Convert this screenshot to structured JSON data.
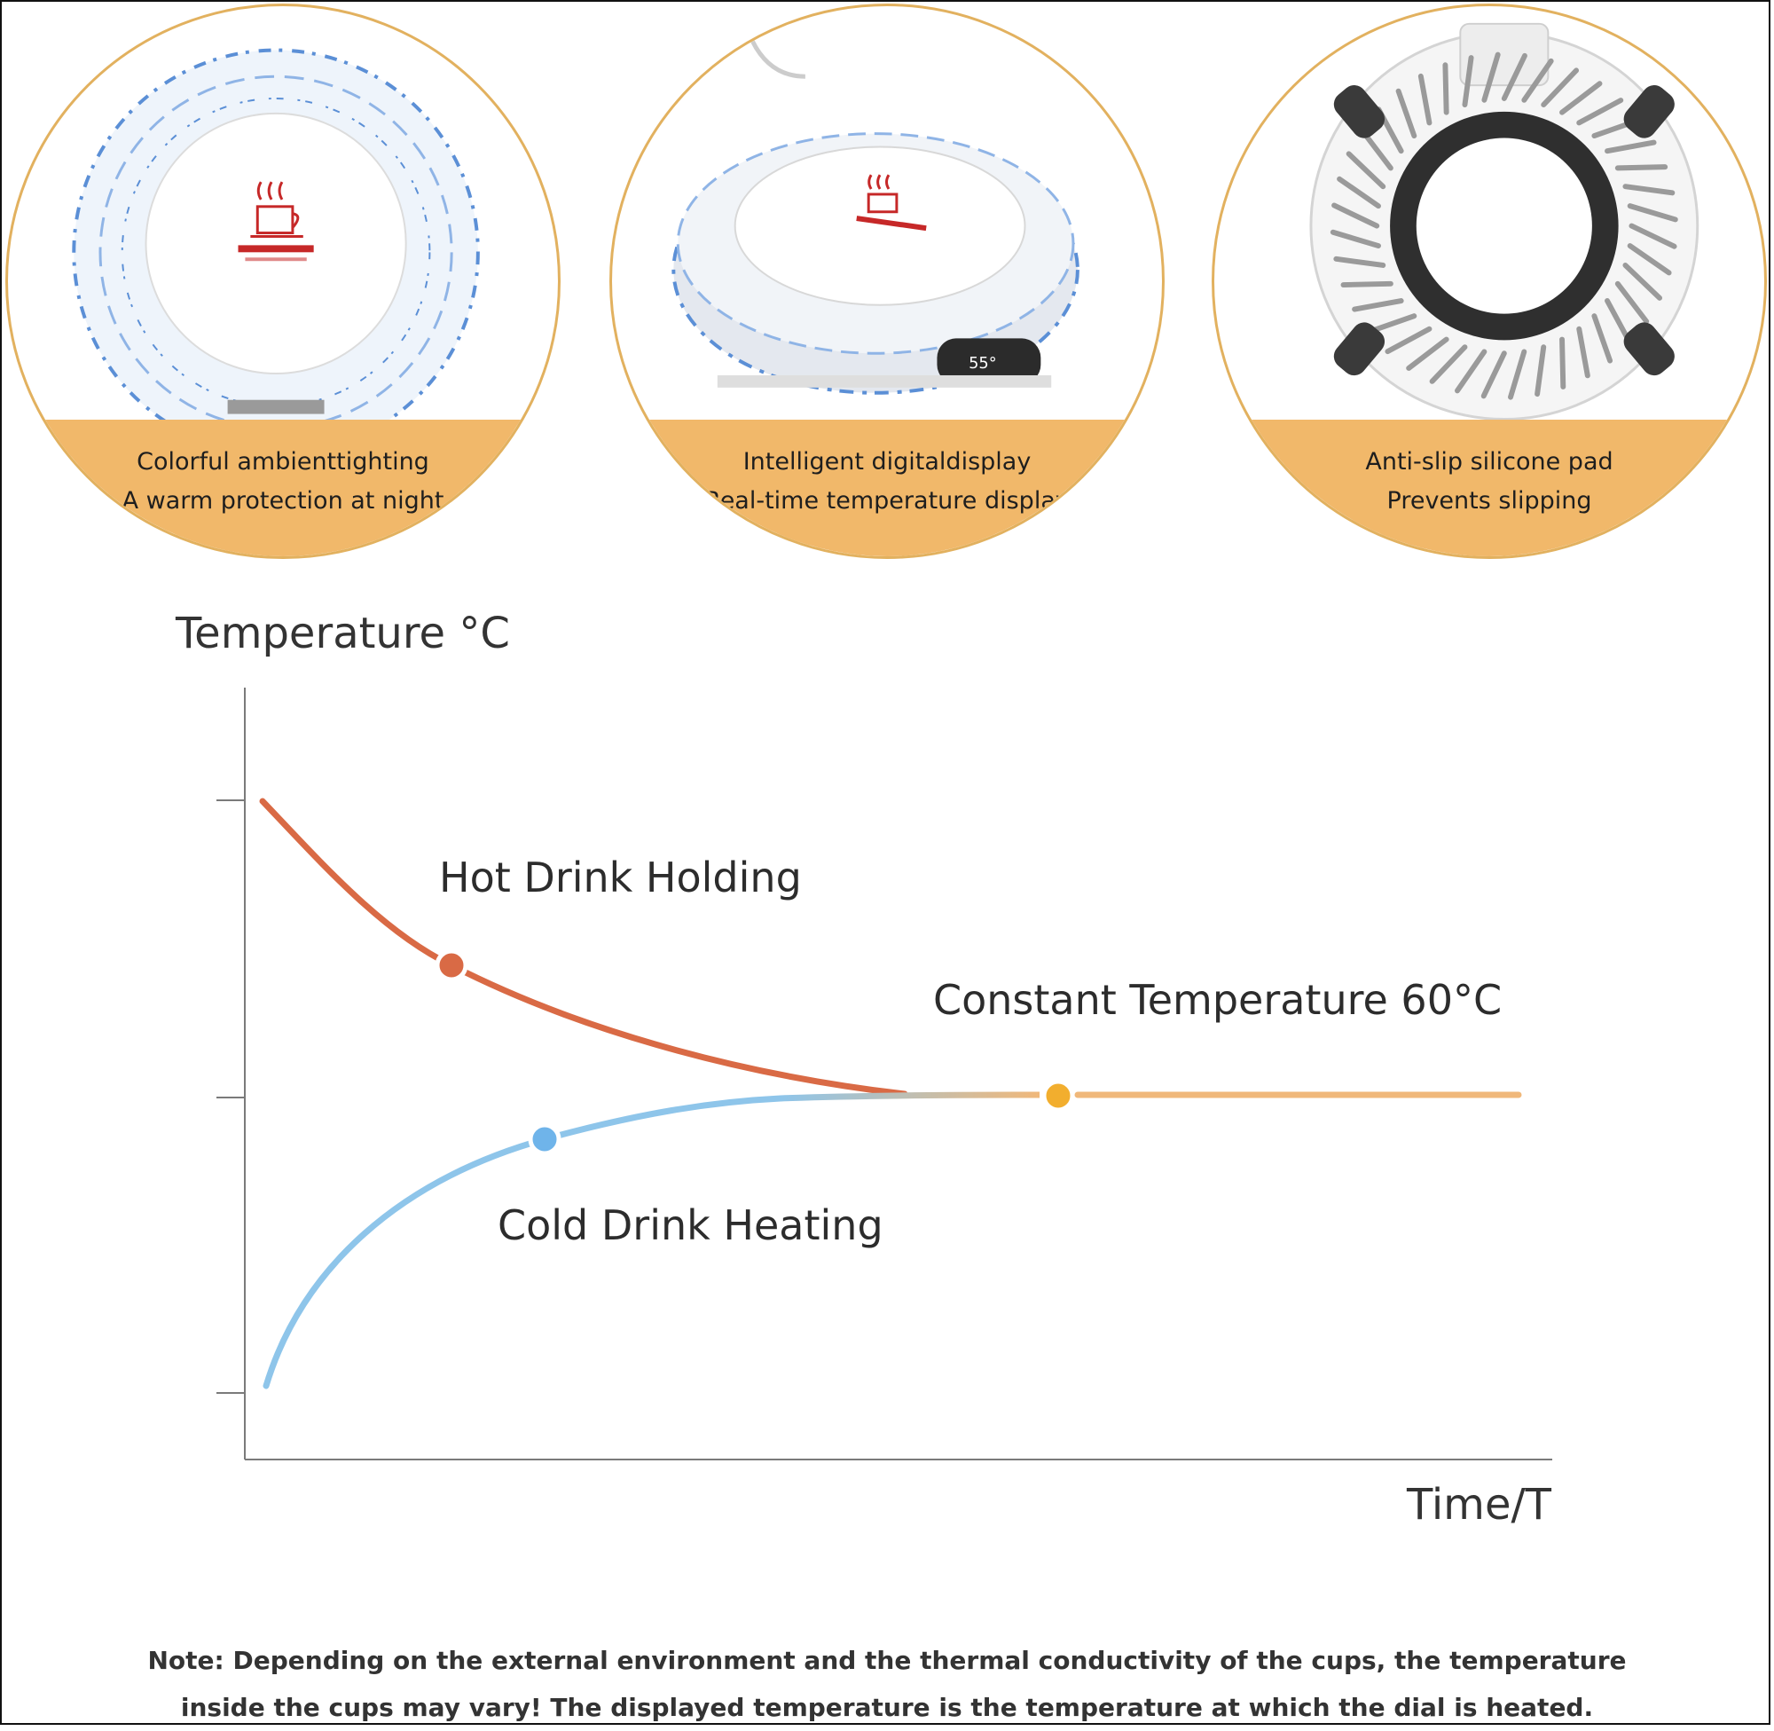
{
  "features": [
    {
      "title": "Colorful ambienttighting",
      "subtitle": "A warm protection at night",
      "icon": "cup-warmer-top-view-icon"
    },
    {
      "title": "Intelligent digitaldisplay",
      "subtitle": "Real-time temperature display",
      "icon": "cup-warmer-display-icon"
    },
    {
      "title": "Anti-slip silicone pad",
      "subtitle": "Prevents slipping",
      "icon": "cup-warmer-bottom-view-icon"
    }
  ],
  "colors": {
    "band": "#f1b86a",
    "hot_curve": "#d96a45",
    "cold_curve": "#8ec5ea",
    "constant_line": "#f0b87a",
    "constant_dot": "#f2ae2e",
    "cold_dot": "#6fb4ea"
  },
  "chart_data": {
    "type": "line",
    "ylabel": "Temperature °C",
    "xlabel": "Time/T",
    "grid": false,
    "annotations": [
      "Hot Drink Holding",
      "Constant Temperature 60°C",
      "Cold Drink Heating"
    ],
    "constant_value": 60,
    "series": [
      {
        "name": "Hot Drink Holding",
        "trend": "decreasing toward 60"
      },
      {
        "name": "Cold Drink Heating",
        "trend": "increasing toward 60"
      },
      {
        "name": "Constant Temperature 60°C",
        "trend": "flat at 60"
      }
    ]
  },
  "note": {
    "line1": "Note: Depending on the external environment and the thermal conductivity of the cups, the temperature",
    "line2": "inside the cups may vary! The displayed temperature is the temperature at which the dial is heated."
  }
}
